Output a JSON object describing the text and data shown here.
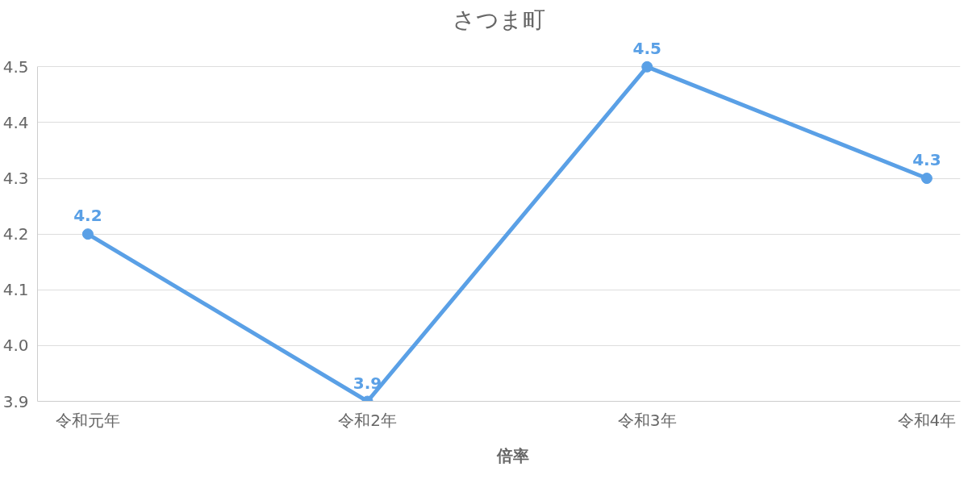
{
  "chart_data": {
    "type": "line",
    "title": "さつま町",
    "categories": [
      "令和元年",
      "令和2年",
      "令和3年",
      "令和4年"
    ],
    "series": [
      {
        "name": "倍率",
        "color": "#5aa0e6",
        "values": [
          4.2,
          3.9,
          4.5,
          4.3
        ]
      }
    ],
    "ylim": [
      3.9,
      4.5
    ],
    "yticks": [
      3.9,
      {
        "value": 4,
        "label": "4.0"
      },
      4.1,
      4.2,
      4.3,
      4.4,
      4.5
    ],
    "grid": "y",
    "legend": "bottom",
    "marker": "circle",
    "line_style": "solid",
    "data_labels": true
  }
}
